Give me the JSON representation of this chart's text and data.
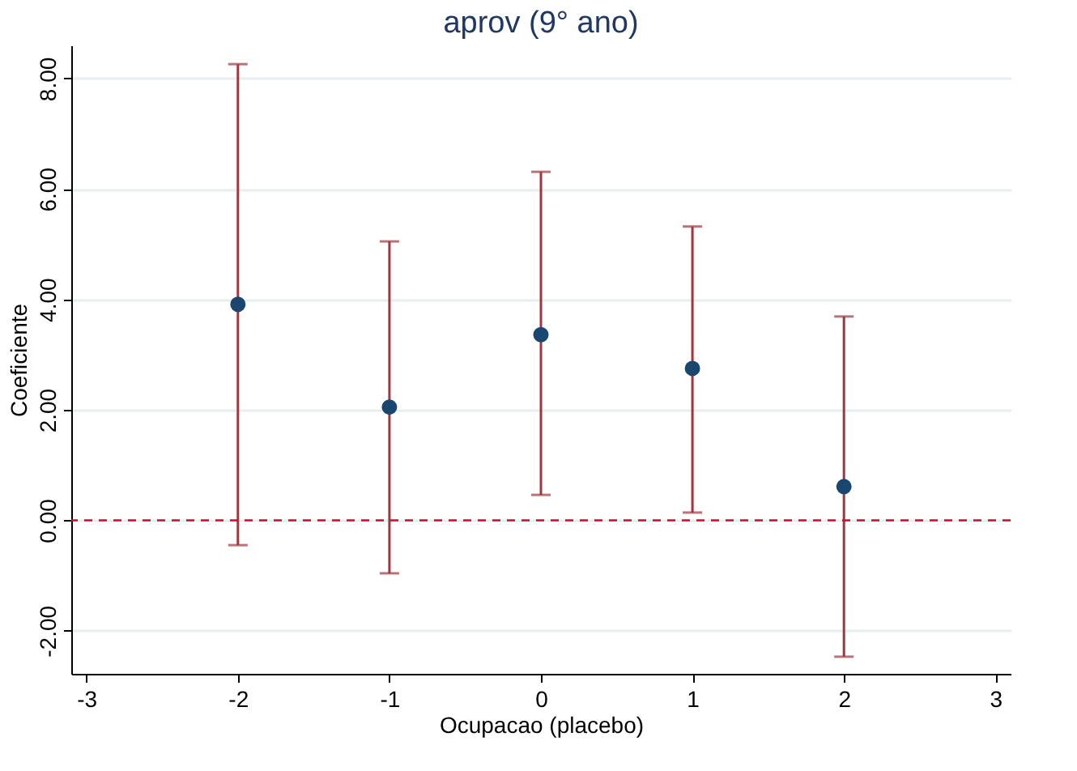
{
  "chart_data": {
    "type": "scatter",
    "title": "aprov (9° ano)",
    "xlabel": "Ocupacao (placebo)",
    "ylabel": "Coeficiente",
    "x": [
      -2,
      -1,
      0,
      1,
      2
    ],
    "series": [
      {
        "color": "#1a476f",
        "values": [
          3.91,
          2.05,
          3.36,
          2.75,
          0.61
        ],
        "errors": [
          [
            -0.45,
            8.26
          ],
          [
            -0.96,
            5.05
          ],
          [
            0.46,
            6.31
          ],
          [
            0.14,
            5.32
          ],
          [
            -2.47,
            3.69
          ]
        ]
      }
    ],
    "xlim": [
      -3.1,
      3.1
    ],
    "xticks": [
      -3,
      -2,
      -1,
      0,
      1,
      2,
      3
    ],
    "ylim": [
      -2.78,
      8.6
    ],
    "yticks": [
      {
        "value": -2,
        "label": "-2.00"
      },
      {
        "value": 0,
        "label": "0.00"
      },
      {
        "value": 2,
        "label": "2.00"
      },
      {
        "value": 4,
        "label": "4.00"
      },
      {
        "value": 6,
        "label": "6.00"
      },
      {
        "value": 8,
        "label": "8.00"
      }
    ],
    "ref_lines": [
      {
        "axis": "y",
        "value": 0,
        "color": "#c8102e",
        "line_style": "dashed"
      }
    ],
    "grid": "y",
    "marker": "circle"
  }
}
